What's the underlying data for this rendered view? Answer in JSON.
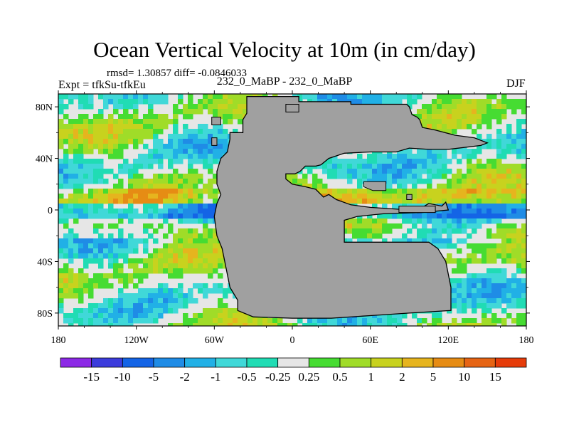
{
  "title": "Ocean Vertical Velocity at 10m (in cm/day)",
  "stats_line": "rmsd= 1.30857 diff= -0.0846033",
  "left_label": "Expt = tfkSu-tfkEu",
  "center_label": "232_0_MaBP - 232_0_MaBP",
  "right_label": "DJF",
  "map": {
    "lon_range": [
      -180,
      180
    ],
    "lat_range": [
      -90,
      90
    ],
    "x_ticks": [
      {
        "lon": -180,
        "label": "180"
      },
      {
        "lon": -120,
        "label": "120W"
      },
      {
        "lon": -60,
        "label": "60W"
      },
      {
        "lon": 0,
        "label": "0"
      },
      {
        "lon": 60,
        "label": "60E"
      },
      {
        "lon": 120,
        "label": "120E"
      },
      {
        "lon": 180,
        "label": "180"
      }
    ],
    "y_ticks": [
      {
        "lat": 80,
        "label": "80N"
      },
      {
        "lat": 40,
        "label": "40N"
      },
      {
        "lat": 0,
        "label": "0"
      },
      {
        "lat": -40,
        "label": "40S"
      },
      {
        "lat": -80,
        "label": "80S"
      }
    ],
    "land_color": "#a0a0a0",
    "land_lonlat": [
      [
        -35,
        88
      ],
      [
        5,
        88
      ],
      [
        5,
        84
      ],
      [
        45,
        84
      ],
      [
        45,
        82
      ],
      [
        88,
        82
      ],
      [
        90,
        80
      ],
      [
        92,
        74
      ],
      [
        96,
        72
      ],
      [
        98,
        70
      ],
      [
        100,
        64
      ],
      [
        110,
        62
      ],
      [
        125,
        58
      ],
      [
        140,
        56
      ],
      [
        150,
        52
      ],
      [
        145,
        50
      ],
      [
        120,
        47
      ],
      [
        105,
        47
      ],
      [
        90,
        48
      ],
      [
        80,
        45
      ],
      [
        60,
        45
      ],
      [
        40,
        44
      ],
      [
        28,
        40
      ],
      [
        22,
        35
      ],
      [
        18,
        34
      ],
      [
        10,
        34
      ],
      [
        6,
        30
      ],
      [
        2,
        28
      ],
      [
        -5,
        28
      ],
      [
        -5,
        24
      ],
      [
        0,
        20
      ],
      [
        10,
        18
      ],
      [
        18,
        16
      ],
      [
        24,
        10
      ],
      [
        28,
        12
      ],
      [
        34,
        8
      ],
      [
        45,
        4
      ],
      [
        60,
        2
      ],
      [
        90,
        0
      ],
      [
        100,
        2
      ],
      [
        105,
        5
      ],
      [
        115,
        3
      ],
      [
        118,
        6
      ],
      [
        120,
        0
      ],
      [
        100,
        -2
      ],
      [
        70,
        -3
      ],
      [
        50,
        -5
      ],
      [
        40,
        -8
      ],
      [
        40,
        -25
      ],
      [
        60,
        -25
      ],
      [
        95,
        -25
      ],
      [
        105,
        -25
      ],
      [
        112,
        -30
      ],
      [
        118,
        -40
      ],
      [
        122,
        -60
      ],
      [
        122,
        -78
      ],
      [
        90,
        -80
      ],
      [
        60,
        -82
      ],
      [
        30,
        -84
      ],
      [
        0,
        -84
      ],
      [
        -30,
        -83
      ],
      [
        -42,
        -78
      ],
      [
        -42,
        -70
      ],
      [
        -48,
        -60
      ],
      [
        -52,
        -40
      ],
      [
        -54,
        -30
      ],
      [
        -58,
        -20
      ],
      [
        -60,
        -5
      ],
      [
        -58,
        5
      ],
      [
        -55,
        12
      ],
      [
        -58,
        20
      ],
      [
        -58,
        30
      ],
      [
        -55,
        40
      ],
      [
        -50,
        45
      ],
      [
        -48,
        55
      ],
      [
        -48,
        60
      ],
      [
        -38,
        60
      ],
      [
        -38,
        70
      ],
      [
        -35,
        75
      ],
      [
        -35,
        88
      ]
    ],
    "islands_lonlat": [
      [
        [
          -62,
          72
        ],
        [
          -55,
          72
        ],
        [
          -55,
          66
        ],
        [
          -62,
          66
        ],
        [
          -62,
          72
        ]
      ],
      [
        [
          -62,
          56
        ],
        [
          -58,
          56
        ],
        [
          -58,
          50
        ],
        [
          -62,
          50
        ],
        [
          -62,
          56
        ]
      ],
      [
        [
          -5,
          82
        ],
        [
          5,
          82
        ],
        [
          5,
          76
        ],
        [
          -5,
          76
        ],
        [
          -5,
          82
        ]
      ],
      [
        [
          55,
          22
        ],
        [
          72,
          22
        ],
        [
          72,
          15
        ],
        [
          62,
          15
        ],
        [
          55,
          18
        ],
        [
          55,
          22
        ]
      ],
      [
        [
          88,
          12
        ],
        [
          92,
          12
        ],
        [
          92,
          8
        ],
        [
          88,
          8
        ],
        [
          88,
          12
        ]
      ],
      [
        [
          82,
          3
        ],
        [
          110,
          3
        ],
        [
          110,
          -2
        ],
        [
          82,
          -2
        ],
        [
          82,
          3
        ]
      ]
    ]
  },
  "colorbar": {
    "colors": [
      "#8c29e6",
      "#3c3cdc",
      "#1464e6",
      "#1f8ce6",
      "#21b0e6",
      "#40d8d8",
      "#20dcb4",
      "#e6e6e6",
      "#46dc32",
      "#a0dc28",
      "#c8d21e",
      "#e6b41e",
      "#e68c14",
      "#e66414",
      "#e63c0a"
    ],
    "labels": [
      "-15",
      "-10",
      "-5",
      "-2",
      "-1",
      "-0.5",
      "-0.25",
      "0.25",
      "0.5",
      "1",
      "2",
      "5",
      "10",
      "15"
    ]
  }
}
